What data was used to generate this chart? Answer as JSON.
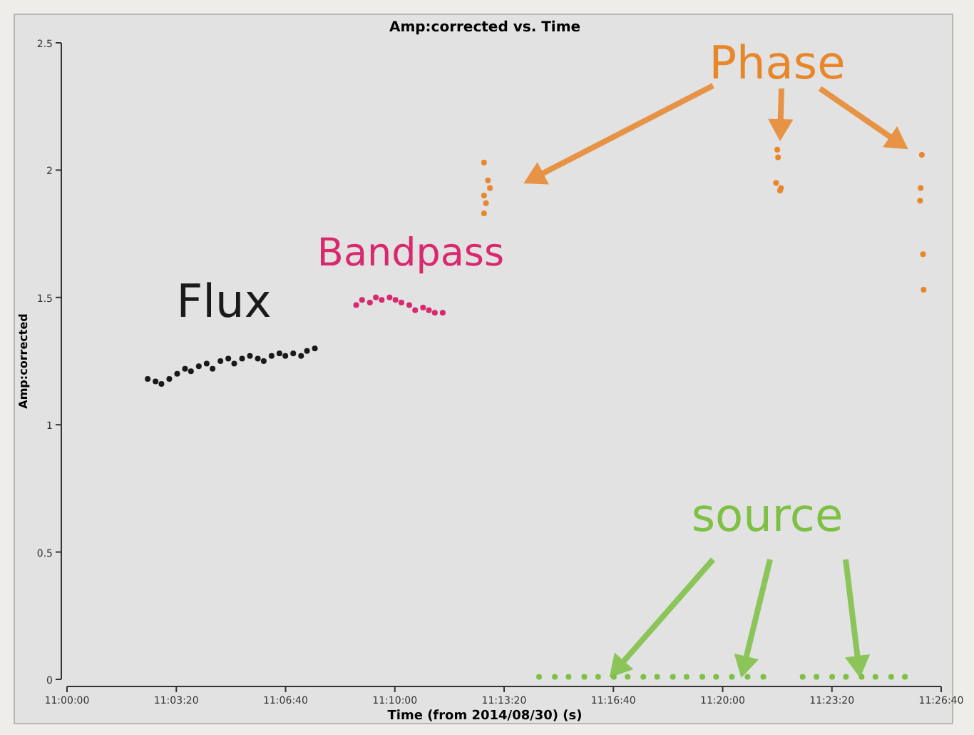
{
  "chart_data": {
    "type": "scatter",
    "title": "Amp:corrected vs. Time",
    "xlabel": "Time (from 2014/08/30) (s)",
    "ylabel": "Amp:corrected",
    "xlim": [
      11,
      11.444444
    ],
    "ylim": [
      0,
      2.5
    ],
    "xticks": [
      {
        "value": 11,
        "label": "11:00:00"
      },
      {
        "value": 11.055556,
        "label": "11:03:20"
      },
      {
        "value": 11.111111,
        "label": "11:06:40"
      },
      {
        "value": 11.166667,
        "label": "11:10:00"
      },
      {
        "value": 11.222222,
        "label": "11:13:20"
      },
      {
        "value": 11.277778,
        "label": "11:16:40"
      },
      {
        "value": 11.333333,
        "label": "11:20:00"
      },
      {
        "value": 11.388889,
        "label": "11:23:20"
      },
      {
        "value": 11.444444,
        "label": "11:26:40"
      }
    ],
    "yticks": [
      0,
      0.5,
      1,
      1.5,
      2,
      2.5
    ],
    "marker": "circle",
    "grid": false,
    "series": [
      {
        "name": "Flux",
        "color": "#1a1a1a",
        "x": [
          11.041,
          11.045,
          11.048,
          11.052,
          11.056,
          11.06,
          11.063,
          11.067,
          11.071,
          11.074,
          11.078,
          11.082,
          11.085,
          11.089,
          11.093,
          11.097,
          11.1,
          11.104,
          11.108,
          11.111,
          11.115,
          11.119,
          11.122,
          11.126
        ],
        "values": [
          1.18,
          1.17,
          1.16,
          1.18,
          1.2,
          1.22,
          1.21,
          1.23,
          1.24,
          1.22,
          1.25,
          1.26,
          1.24,
          1.26,
          1.27,
          1.26,
          1.25,
          1.27,
          1.28,
          1.27,
          1.28,
          1.27,
          1.29,
          1.3
        ]
      },
      {
        "name": "Bandpass",
        "color": "#d9286e",
        "x": [
          11.147,
          11.15,
          11.154,
          11.157,
          11.16,
          11.164,
          11.167,
          11.17,
          11.174,
          11.177,
          11.181,
          11.184,
          11.187,
          11.191
        ],
        "values": [
          1.47,
          1.49,
          1.48,
          1.5,
          1.49,
          1.5,
          1.49,
          1.48,
          1.47,
          1.45,
          1.46,
          1.45,
          1.44,
          1.44
        ]
      },
      {
        "name": "Phase",
        "color": "#e8862a",
        "x": [
          11.212,
          11.214,
          11.215,
          11.212,
          11.213,
          11.212,
          11.3611,
          11.3615,
          11.3605,
          11.3625,
          11.363,
          11.4346,
          11.434,
          11.4337,
          11.4352,
          11.4355
        ],
        "values": [
          2.03,
          1.96,
          1.93,
          1.9,
          1.87,
          1.83,
          2.08,
          2.05,
          1.95,
          1.92,
          1.93,
          2.06,
          1.93,
          1.88,
          1.67,
          1.53
        ]
      },
      {
        "name": "source",
        "color": "#7dc043",
        "x": [
          11.24,
          11.248,
          11.255,
          11.263,
          11.27,
          11.278,
          11.285,
          11.293,
          11.3,
          11.308,
          11.315,
          11.323,
          11.33,
          11.338,
          11.346,
          11.354,
          11.374,
          11.381,
          11.389,
          11.396,
          11.404,
          11.411,
          11.419,
          11.426
        ],
        "values": [
          0.01,
          0.01,
          0.01,
          0.01,
          0.01,
          0.01,
          0.01,
          0.01,
          0.01,
          0.01,
          0.01,
          0.01,
          0.01,
          0.01,
          0.01,
          0.01,
          0.01,
          0.01,
          0.01,
          0.01,
          0.01,
          0.01,
          0.01,
          0.01
        ]
      }
    ]
  }
}
